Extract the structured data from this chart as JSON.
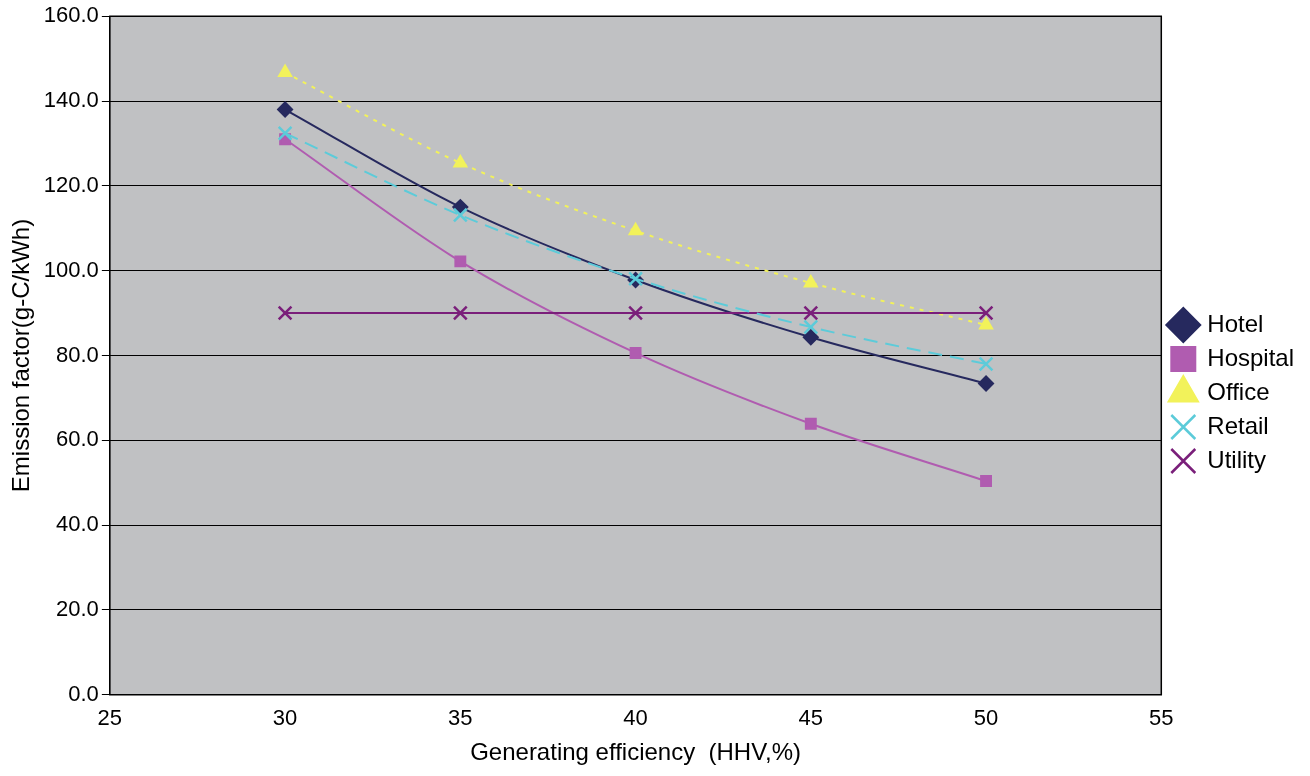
{
  "chart_data": {
    "type": "line",
    "xlabel": "Generating efficiency  (HHV,%)",
    "ylabel": "Emission factor(g-C/kWh)",
    "x": [
      30,
      35,
      40,
      45,
      50
    ],
    "series": [
      {
        "name": "Hotel",
        "color": "#26295e",
        "marker": "diamond",
        "line_style": "solid",
        "values": [
          138.0,
          115.0,
          97.8,
          84.3,
          73.4
        ]
      },
      {
        "name": "Hospital",
        "color": "#b05cb0",
        "marker": "square",
        "line_style": "solid",
        "values": [
          131.0,
          102.2,
          80.6,
          63.9,
          50.4
        ]
      },
      {
        "name": "Office",
        "color": "#f2f25a",
        "marker": "triangle",
        "line_style": "dotted",
        "values": [
          146.7,
          125.4,
          109.4,
          97.1,
          87.2
        ]
      },
      {
        "name": "Retail",
        "color": "#5ccbd9",
        "marker": "cross",
        "line_style": "dashed",
        "values": [
          132.4,
          113.1,
          98.1,
          86.7,
          78.0
        ]
      },
      {
        "name": "Utility",
        "color": "#7a1f7a",
        "marker": "cross",
        "line_style": "solid",
        "values": [
          90,
          90,
          90,
          90,
          90
        ]
      }
    ],
    "xlim": [
      25,
      55
    ],
    "xticks": [
      25,
      30,
      35,
      40,
      45,
      50,
      55
    ],
    "ylim": [
      0,
      160
    ],
    "yticks": [
      {
        "value": 0,
        "label": "0.0"
      },
      {
        "value": 20,
        "label": "20.0"
      },
      {
        "value": 40,
        "label": "40.0"
      },
      {
        "value": 60,
        "label": "60.0"
      },
      {
        "value": 80,
        "label": "80.0"
      },
      {
        "value": 100,
        "label": "100.0"
      },
      {
        "value": 120,
        "label": "120.0"
      },
      {
        "value": 140,
        "label": "140.0"
      },
      {
        "value": 160,
        "label": "160.0"
      }
    ],
    "grid": "y",
    "legend": "right"
  }
}
